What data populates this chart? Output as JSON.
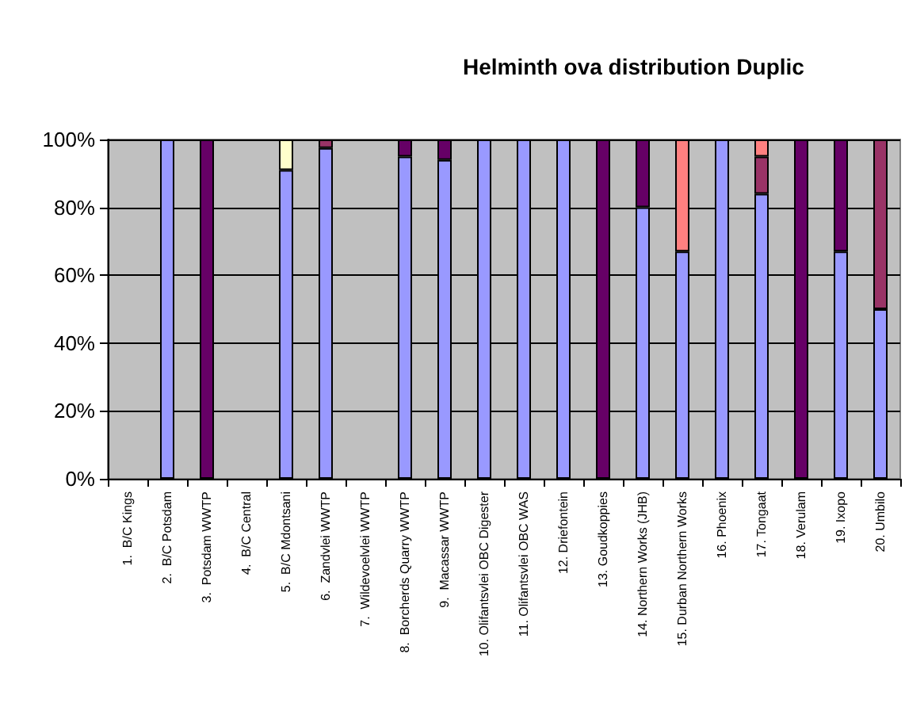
{
  "chart_data": {
    "type": "bar",
    "title": "Helminth ova distribution Duplic",
    "categories": [
      "1.  B/C Kings",
      "2.  B/C Potsdam",
      "3.  Potsdam WWTP",
      "4.  B/C Central",
      "5.  B/C Mdontsani",
      "6.  Zandvlei WWTP",
      "7.  Wildevoelvlei WWTP",
      "8.  Borcherds Quarry WWTP",
      "9.  Macassar WWTP",
      "10. Olifantsvlei OBC Digester",
      "11. Olifantsvlei OBC WAS",
      "12. Driefontein",
      "13. Goudkoppies",
      "14. Northern Works (JHB)",
      "15. Durban Northern Works",
      "16. Phoenix",
      "17. Tongaat",
      "18. Verulam",
      "19. Ixopo",
      "20. Umbilo"
    ],
    "stacked": true,
    "series": [
      {
        "color": "#9999ff",
        "values": [
          null,
          100,
          null,
          null,
          91,
          97.5,
          null,
          95,
          94,
          100,
          100,
          100,
          null,
          80,
          67,
          100,
          84,
          null,
          67,
          50
        ]
      },
      {
        "color": "#660066",
        "values": [
          null,
          null,
          100,
          null,
          null,
          null,
          null,
          5,
          6,
          null,
          null,
          null,
          100,
          20,
          null,
          null,
          null,
          100,
          33,
          null
        ]
      },
      {
        "color": "#993366",
        "values": [
          null,
          null,
          null,
          null,
          null,
          2.5,
          null,
          null,
          null,
          null,
          null,
          null,
          null,
          null,
          null,
          null,
          11,
          null,
          null,
          50
        ]
      },
      {
        "color": "#ff8080",
        "values": [
          null,
          null,
          null,
          null,
          null,
          null,
          null,
          null,
          null,
          null,
          null,
          null,
          null,
          null,
          33,
          null,
          5,
          null,
          null,
          null
        ]
      },
      {
        "color": "#ffffcc",
        "values": [
          null,
          null,
          null,
          null,
          9,
          null,
          null,
          null,
          null,
          null,
          null,
          null,
          null,
          null,
          null,
          null,
          null,
          null,
          null,
          null
        ]
      }
    ],
    "ylim": [
      0,
      100
    ],
    "yticks": [
      {
        "value": 0,
        "label": "0%"
      },
      {
        "value": 20,
        "label": "20%"
      },
      {
        "value": 40,
        "label": "40%"
      },
      {
        "value": 60,
        "label": "60%"
      },
      {
        "value": 80,
        "label": "80%"
      },
      {
        "value": 100,
        "label": "100%"
      }
    ],
    "grid": true
  }
}
